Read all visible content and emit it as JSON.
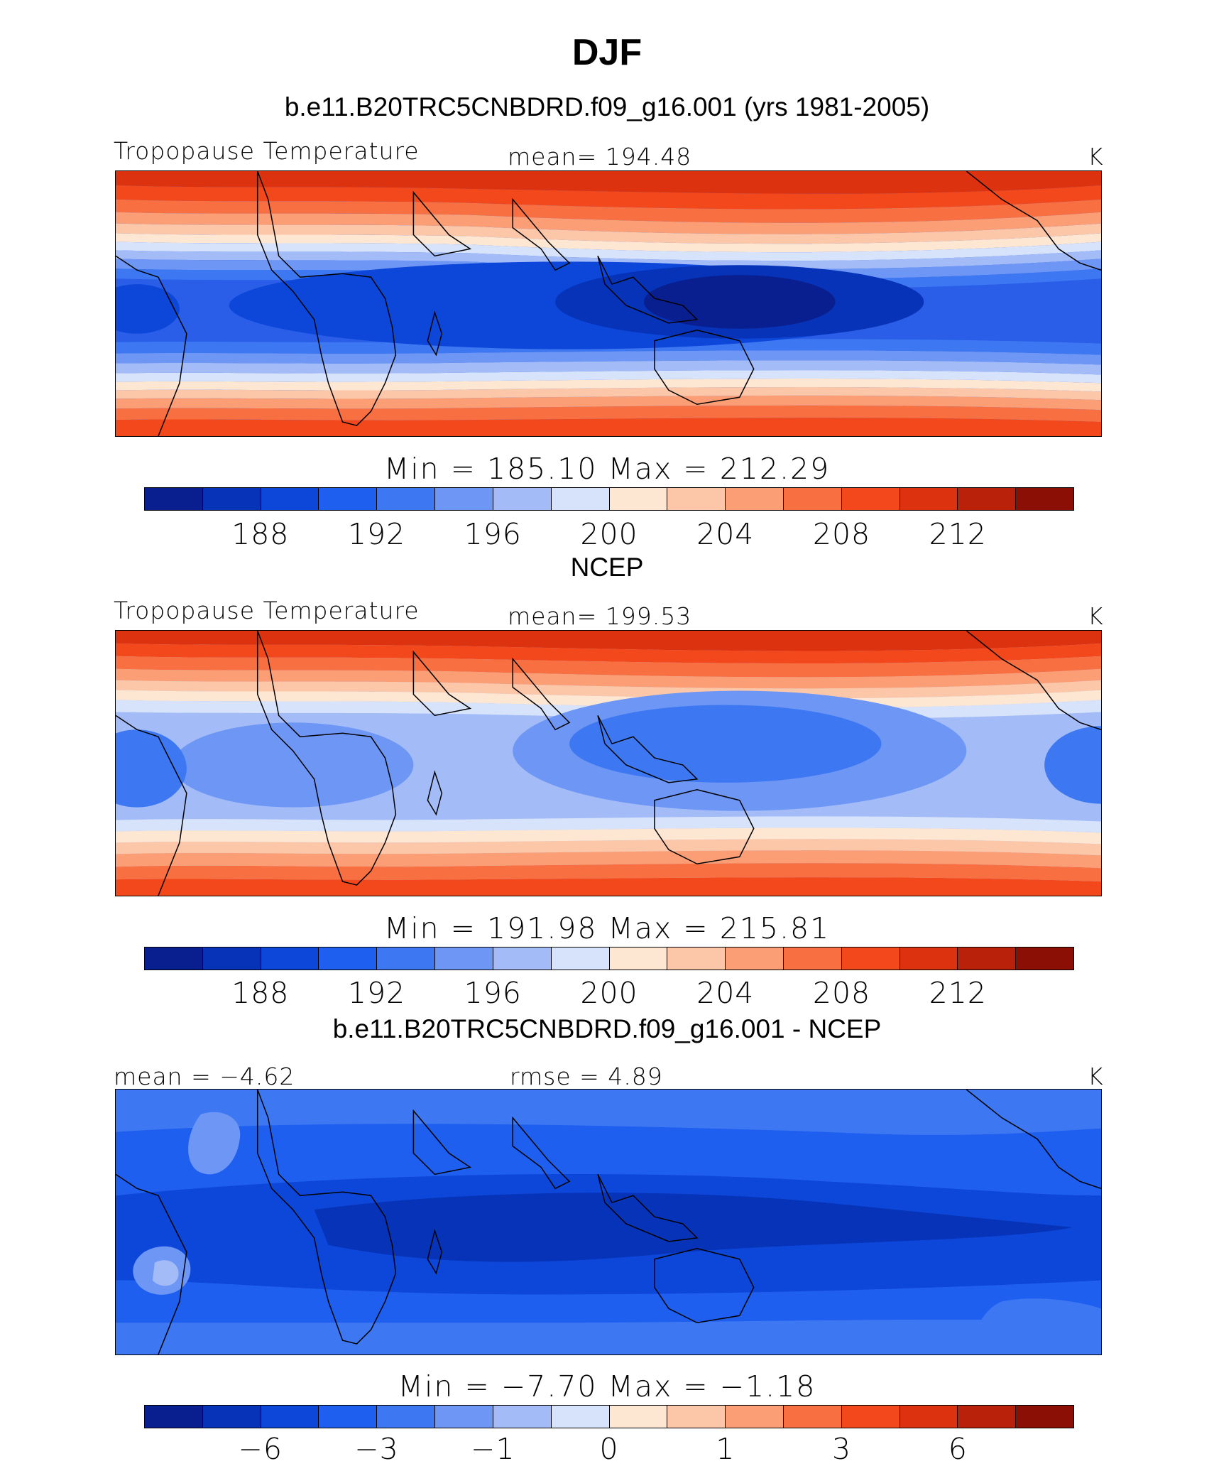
{
  "title": "DJF",
  "colorbar_colors": [
    "#0a1f8f",
    "#0633b8",
    "#0d47d9",
    "#1f5ff0",
    "#3d78f2",
    "#6e96f4",
    "#a3bcf8",
    "#d6e3fb",
    "#fde6d2",
    "#fcc6a8",
    "#fb9e76",
    "#f86f42",
    "#f2481b",
    "#dd3210",
    "#b9210a",
    "#8c0f05"
  ],
  "panels": [
    {
      "title": "b.e11.B20TRC5CNBDRD.f09_g16.001 (yrs 1981-2005)",
      "left_label": "Tropopause  Temperature",
      "center_label": "mean=  194.48",
      "units": "K",
      "minmax": "Min  =  185.10  Max  =  212.29",
      "ticks": [
        "188",
        "192",
        "196",
        "200",
        "204",
        "208",
        "212"
      ]
    },
    {
      "title": "NCEP",
      "left_label": "Tropopause  Temperature",
      "center_label": "mean=  199.53",
      "units": "K",
      "minmax": "Min  =  191.98  Max  =  215.81",
      "ticks": [
        "188",
        "192",
        "196",
        "200",
        "204",
        "208",
        "212"
      ]
    },
    {
      "title": "b.e11.B20TRC5CNBDRD.f09_g16.001 - NCEP",
      "left_label": "mean =    −4.62",
      "center_label": "rmse =     4.89",
      "units": "K",
      "minmax": "Min  =    −7.70  Max  =    −1.18",
      "ticks": [
        "−6",
        "−3",
        "−1",
        "0",
        "1",
        "3",
        "6"
      ]
    }
  ],
  "chart_data": [
    {
      "type": "heatmap",
      "title": "b.e11.B20TRC5CNBDRD.f09_g16.001 (yrs 1981-2005)",
      "variable": "Tropopause  Temperature",
      "units": "K",
      "mean": 194.48,
      "min": 185.1,
      "max": 212.29,
      "colorbar_ticks": [
        188,
        192,
        196,
        200,
        204,
        208,
        212
      ]
    },
    {
      "type": "heatmap",
      "title": "NCEP",
      "variable": "Tropopause  Temperature",
      "units": "K",
      "mean": 199.53,
      "min": 191.98,
      "max": 215.81,
      "colorbar_ticks": [
        188,
        192,
        196,
        200,
        204,
        208,
        212
      ]
    },
    {
      "type": "heatmap",
      "title": "b.e11.B20TRC5CNBDRD.f09_g16.001 - NCEP",
      "units": "K",
      "mean": -4.62,
      "rmse": 4.89,
      "min": -7.7,
      "max": -1.18,
      "colorbar_ticks": [
        -6,
        -3,
        -1,
        0,
        1,
        3,
        6
      ]
    }
  ]
}
